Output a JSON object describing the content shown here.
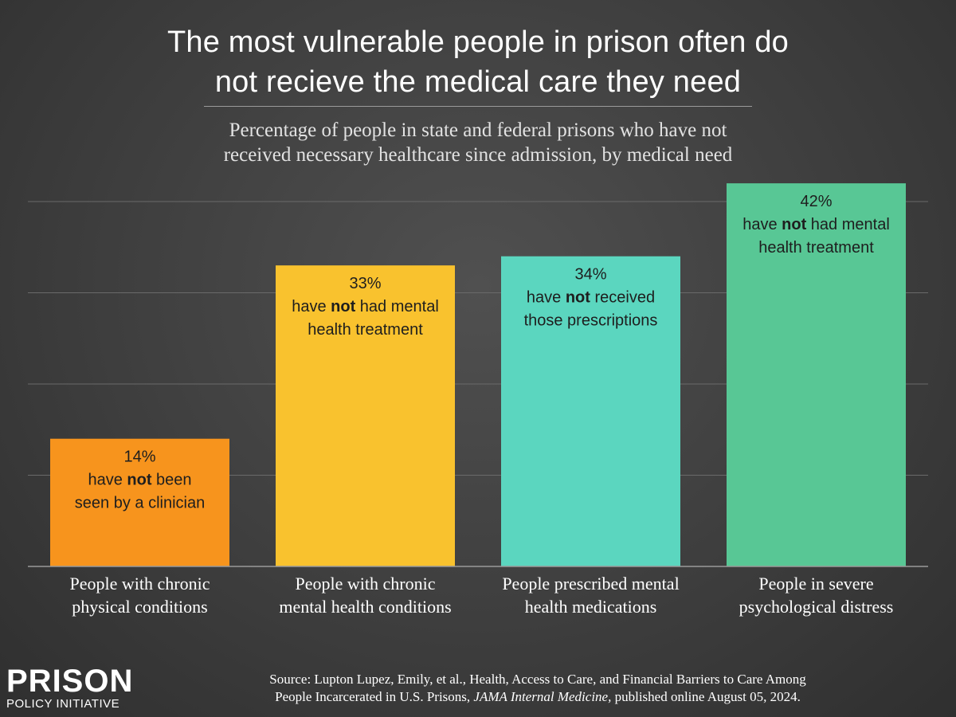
{
  "title_line1": "The most vulnerable people in prison often do",
  "title_line2": "not recieve the medical care they need",
  "subtitle_line1": "Percentage of people in state and federal prisons who have not",
  "subtitle_line2": "received necessary healthcare since admission, by medical need",
  "chart_data": {
    "type": "bar",
    "title": "The most vulnerable people in prison often do not recieve the medical care they need",
    "subtitle": "Percentage of people in state and federal prisons who have not received necessary healthcare since admission, by medical need",
    "categories": [
      [
        "People with chronic",
        "physical conditions"
      ],
      [
        "People with chronic",
        "mental health conditions"
      ],
      [
        "People prescribed mental",
        "health medications"
      ],
      [
        "People in severe",
        "psychological distress"
      ]
    ],
    "values": [
      14,
      33,
      34,
      42
    ],
    "ylim": [
      0,
      50
    ],
    "grid": true,
    "colors": [
      "#f7941d",
      "#f9c22e",
      "#5bd6bf",
      "#58c795"
    ],
    "bar_labels": [
      {
        "pct": "14%",
        "pre": "have ",
        "bold": "not",
        "post": " been",
        "line3": "seen by a clinician"
      },
      {
        "pct": "33%",
        "pre": "have ",
        "bold": "not",
        "post": " had mental",
        "line3": "health treatment"
      },
      {
        "pct": "34%",
        "pre": "have ",
        "bold": "not",
        "post": " received",
        "line3": "those prescriptions"
      },
      {
        "pct": "42%",
        "pre": "have ",
        "bold": "not",
        "post": " had mental",
        "line3": "health treatment"
      }
    ]
  },
  "source": {
    "prefix": "Source: Lupton Lupez, Emily, et al., Health, Access to Care, and Financial Barriers to Care Among",
    "line2_pre": "People Incarcerated in U.S. Prisons, ",
    "journal": "JAMA Internal Medicine,",
    "line2_post": " published online August 05, 2024."
  },
  "logo": {
    "word": "PRISON",
    "sub": "POLICY INITIATIVE"
  }
}
